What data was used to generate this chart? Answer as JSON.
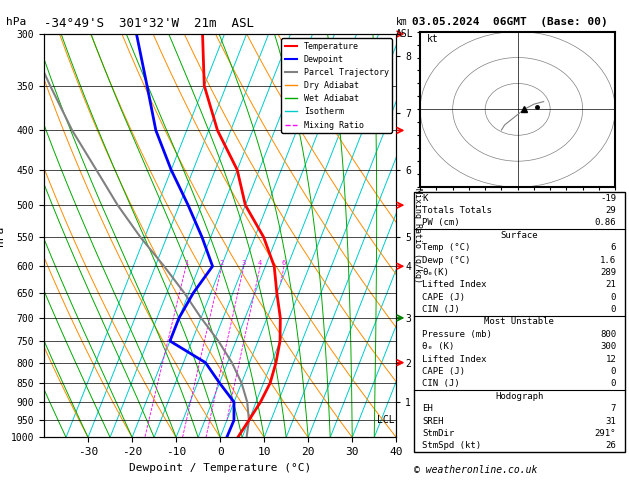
{
  "title_left": "-34°49'S  301°32'W  21m  ASL",
  "title_right": "03.05.2024  06GMT  (Base: 00)",
  "xlabel": "Dewpoint / Temperature (°C)",
  "ylabel_left": "hPa",
  "pressure_levels": [
    300,
    350,
    400,
    450,
    500,
    550,
    600,
    650,
    700,
    750,
    800,
    850,
    900,
    950,
    1000
  ],
  "temp_range": [
    -40,
    40
  ],
  "temp_ticks": [
    -30,
    -20,
    -10,
    0,
    10,
    20,
    30,
    40
  ],
  "isotherm_temps": [
    -35,
    -30,
    -25,
    -20,
    -15,
    -10,
    -5,
    0,
    5,
    10,
    15,
    20,
    25,
    30,
    35,
    40
  ],
  "dry_adiabat_base_temps": [
    -40,
    -30,
    -20,
    -10,
    0,
    10,
    20,
    30,
    40,
    50,
    60,
    70,
    80
  ],
  "mixing_ratio_values": [
    1,
    2,
    3,
    4,
    6,
    8,
    10,
    15,
    20,
    25
  ],
  "temp_profile_temp": [
    4,
    5,
    6,
    6.5,
    6,
    5,
    3,
    0,
    -3,
    -8,
    -15,
    -20,
    -28,
    -35,
    -40
  ],
  "temp_profile_press": [
    1000,
    950,
    900,
    850,
    800,
    750,
    700,
    650,
    600,
    550,
    500,
    450,
    400,
    350,
    300
  ],
  "dewp_profile_temp": [
    1.5,
    1.6,
    0,
    -5,
    -10,
    -20,
    -20,
    -19,
    -17,
    -22,
    -28,
    -35,
    -42,
    -48,
    -55
  ],
  "dewp_profile_press": [
    1000,
    950,
    900,
    850,
    800,
    750,
    700,
    650,
    600,
    550,
    500,
    450,
    400,
    350,
    300
  ],
  "parcel_temp": [
    6,
    5,
    3,
    0,
    -4,
    -9,
    -15,
    -21,
    -28,
    -36,
    -44,
    -52,
    -61,
    -70,
    -80
  ],
  "parcel_press": [
    1000,
    950,
    900,
    850,
    800,
    750,
    700,
    650,
    600,
    550,
    500,
    450,
    400,
    350,
    300
  ],
  "lcl_pressure": 950,
  "km_labels": [
    1,
    2,
    3,
    4,
    5,
    6,
    7,
    8
  ],
  "km_pressures": [
    900,
    800,
    700,
    600,
    550,
    450,
    380,
    320
  ],
  "stats_K": "-19",
  "stats_TT": "29",
  "stats_PW": "0.86",
  "surf_temp": "6",
  "surf_dewp": "1.6",
  "surf_theta": "289",
  "surf_li": "21",
  "surf_cape": "0",
  "surf_cin": "0",
  "mu_press": "800",
  "mu_theta": "300",
  "mu_li": "12",
  "mu_cape": "0",
  "mu_cin": "0",
  "hodo_EH": "7",
  "hodo_SREH": "31",
  "hodo_StmDir": "291°",
  "hodo_StmSpd": "26",
  "color_temp": "#ff0000",
  "color_dewp": "#0000ff",
  "color_parcel": "#808080",
  "color_dry_adiabat": "#ff8c00",
  "color_wet_adiabat": "#00aa00",
  "color_isotherm": "#00cccc",
  "color_mixing_ratio": "#ff00ff",
  "skew_factor": 0.8,
  "footer": "© weatheronline.co.uk"
}
